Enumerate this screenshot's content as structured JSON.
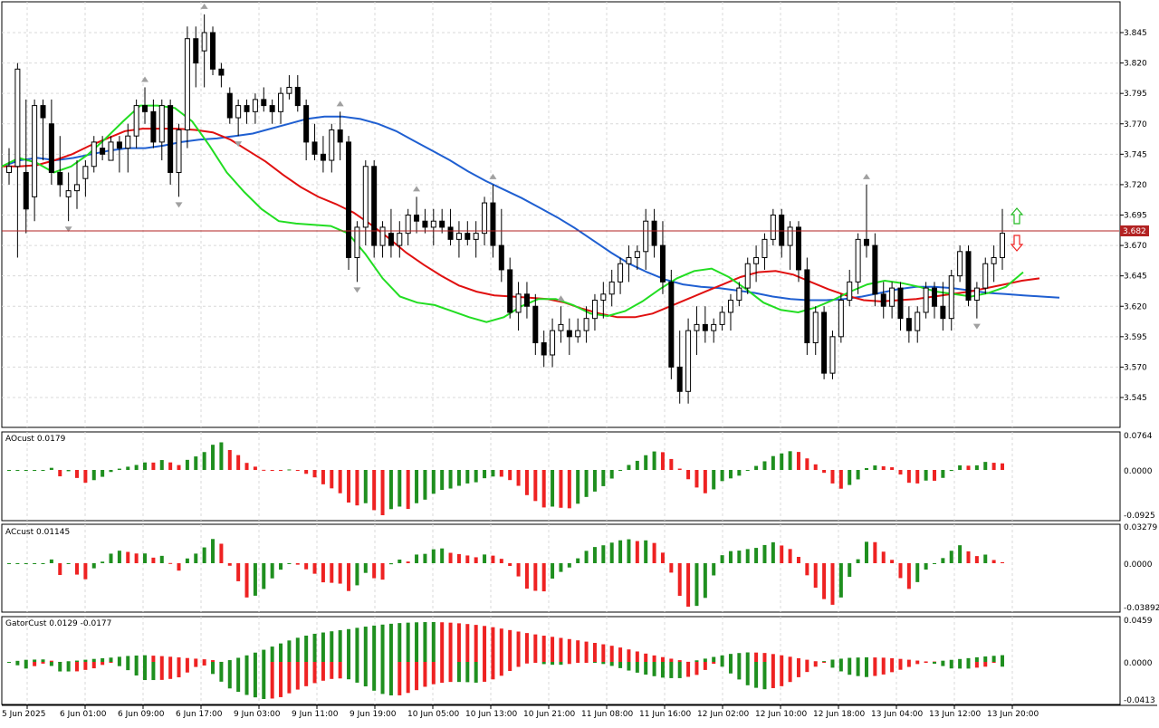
{
  "window": {
    "title": ""
  },
  "colors": {
    "background": "#ffffff",
    "grid": "#d9d9d9",
    "axis": "#000000",
    "bull_candle": "#ffffff",
    "bear_candle": "#000000",
    "jaw": "#1f5fd1",
    "teeth": "#e01010",
    "lips": "#22dd22",
    "up_bar": "#1f8f1f",
    "down_bar": "#ee2222",
    "price_line": "#b22222",
    "price_label_bg": "#b22222",
    "fractal": "#a0a0a0"
  },
  "price_axis": {
    "ticks": [
      "3.845",
      "3.820",
      "3.795",
      "3.770",
      "3.745",
      "3.720",
      "3.695",
      "3.670",
      "3.645",
      "3.620",
      "3.595",
      "3.570",
      "3.545"
    ],
    "current_price_label": "3.682"
  },
  "time_axis": {
    "labels": [
      "5 Jun 2025",
      "6 Jun 01:00",
      "6 Jun 09:00",
      "6 Jun 17:00",
      "9 Jun 03:00",
      "9 Jun 11:00",
      "9 Jun 19:00",
      "10 Jun 05:00",
      "10 Jun 13:00",
      "10 Jun 21:00",
      "11 Jun 08:00",
      "11 Jun 16:00",
      "12 Jun 02:00",
      "12 Jun 10:00",
      "12 Jun 18:00",
      "13 Jun 04:00",
      "13 Jun 12:00",
      "13 Jun 20:00"
    ]
  },
  "panels": {
    "ao": {
      "title": "AOcust 0.0179",
      "ticks": [
        "0.0764",
        "0.0000",
        "-0.0925"
      ]
    },
    "ac": {
      "title": "ACcust 0.01145",
      "ticks": [
        "0.03279",
        "0.0000",
        "-0.03892"
      ]
    },
    "gator": {
      "title": "GatorCust 0.0129 -0.0177",
      "ticks": [
        "0.0459",
        "0.0000",
        "-0.0413"
      ]
    }
  },
  "signals": {
    "buy_arrow": "arrow-up-icon",
    "sell_arrow": "arrow-down-icon"
  },
  "chart_data": {
    "type": "candlestick",
    "ylim": [
      3.53,
      3.86
    ],
    "candles": [
      [
        3.73,
        3.75,
        3.72,
        3.735
      ],
      [
        3.735,
        3.82,
        3.66,
        3.815
      ],
      [
        3.73,
        3.79,
        3.68,
        3.7
      ],
      [
        3.71,
        3.79,
        3.69,
        3.785
      ],
      [
        3.785,
        3.79,
        3.74,
        3.775
      ],
      [
        3.77,
        3.79,
        3.72,
        3.73
      ],
      [
        3.73,
        3.76,
        3.71,
        3.72
      ],
      [
        3.71,
        3.73,
        3.69,
        3.715
      ],
      [
        3.715,
        3.74,
        3.7,
        3.72
      ],
      [
        3.725,
        3.74,
        3.71,
        3.735
      ],
      [
        3.735,
        3.76,
        3.73,
        3.755
      ],
      [
        3.75,
        3.76,
        3.74,
        3.745
      ],
      [
        3.74,
        3.76,
        3.74,
        3.755
      ],
      [
        3.755,
        3.76,
        3.73,
        3.75
      ],
      [
        3.75,
        3.77,
        3.73,
        3.76
      ],
      [
        3.76,
        3.79,
        3.75,
        3.785
      ],
      [
        3.785,
        3.8,
        3.77,
        3.78
      ],
      [
        3.78,
        3.79,
        3.75,
        3.755
      ],
      [
        3.755,
        3.79,
        3.74,
        3.785
      ],
      [
        3.785,
        3.79,
        3.72,
        3.73
      ],
      [
        3.73,
        3.77,
        3.71,
        3.765
      ],
      [
        3.765,
        3.85,
        3.75,
        3.84
      ],
      [
        3.84,
        3.85,
        3.8,
        3.82
      ],
      [
        3.83,
        3.86,
        3.8,
        3.845
      ],
      [
        3.845,
        3.85,
        3.81,
        3.815
      ],
      [
        3.815,
        3.82,
        3.8,
        3.81
      ],
      [
        3.795,
        3.8,
        3.77,
        3.775
      ],
      [
        3.775,
        3.79,
        3.76,
        3.785
      ],
      [
        3.785,
        3.79,
        3.77,
        3.78
      ],
      [
        3.78,
        3.795,
        3.77,
        3.79
      ],
      [
        3.79,
        3.8,
        3.78,
        3.785
      ],
      [
        3.785,
        3.79,
        3.77,
        3.78
      ],
      [
        3.78,
        3.8,
        3.77,
        3.795
      ],
      [
        3.795,
        3.81,
        3.79,
        3.8
      ],
      [
        3.8,
        3.81,
        3.78,
        3.785
      ],
      [
        3.785,
        3.79,
        3.74,
        3.755
      ],
      [
        3.755,
        3.77,
        3.74,
        3.745
      ],
      [
        3.745,
        3.76,
        3.73,
        3.74
      ],
      [
        3.74,
        3.77,
        3.73,
        3.765
      ],
      [
        3.765,
        3.78,
        3.74,
        3.755
      ],
      [
        3.755,
        3.76,
        3.65,
        3.66
      ],
      [
        3.66,
        3.69,
        3.64,
        3.685
      ],
      [
        3.685,
        3.74,
        3.67,
        3.735
      ],
      [
        3.735,
        3.74,
        3.66,
        3.67
      ],
      [
        3.67,
        3.69,
        3.66,
        3.685
      ],
      [
        3.68,
        3.7,
        3.66,
        3.67
      ],
      [
        3.67,
        3.69,
        3.66,
        3.68
      ],
      [
        3.68,
        3.7,
        3.67,
        3.695
      ],
      [
        3.695,
        3.71,
        3.68,
        3.69
      ],
      [
        3.69,
        3.7,
        3.68,
        3.685
      ],
      [
        3.685,
        3.7,
        3.67,
        3.69
      ],
      [
        3.69,
        3.7,
        3.68,
        3.685
      ],
      [
        3.685,
        3.7,
        3.67,
        3.675
      ],
      [
        3.675,
        3.69,
        3.66,
        3.68
      ],
      [
        3.68,
        3.69,
        3.67,
        3.675
      ],
      [
        3.675,
        3.69,
        3.66,
        3.68
      ],
      [
        3.68,
        3.71,
        3.67,
        3.705
      ],
      [
        3.705,
        3.72,
        3.66,
        3.67
      ],
      [
        3.67,
        3.7,
        3.64,
        3.65
      ],
      [
        3.65,
        3.66,
        3.61,
        3.615
      ],
      [
        3.615,
        3.64,
        3.6,
        3.63
      ],
      [
        3.63,
        3.64,
        3.61,
        3.62
      ],
      [
        3.62,
        3.63,
        3.58,
        3.59
      ],
      [
        3.59,
        3.6,
        3.57,
        3.58
      ],
      [
        3.58,
        3.61,
        3.57,
        3.6
      ],
      [
        3.6,
        3.62,
        3.59,
        3.605
      ],
      [
        3.6,
        3.61,
        3.58,
        3.595
      ],
      [
        3.595,
        3.61,
        3.59,
        3.6
      ],
      [
        3.6,
        3.62,
        3.59,
        3.61
      ],
      [
        3.61,
        3.63,
        3.6,
        3.625
      ],
      [
        3.625,
        3.64,
        3.61,
        3.63
      ],
      [
        3.63,
        3.65,
        3.62,
        3.64
      ],
      [
        3.64,
        3.66,
        3.63,
        3.655
      ],
      [
        3.655,
        3.67,
        3.64,
        3.66
      ],
      [
        3.66,
        3.67,
        3.65,
        3.665
      ],
      [
        3.665,
        3.7,
        3.65,
        3.69
      ],
      [
        3.69,
        3.7,
        3.66,
        3.67
      ],
      [
        3.67,
        3.69,
        3.63,
        3.64
      ],
      [
        3.64,
        3.65,
        3.56,
        3.57
      ],
      [
        3.57,
        3.6,
        3.54,
        3.55
      ],
      [
        3.55,
        3.61,
        3.54,
        3.6
      ],
      [
        3.6,
        3.62,
        3.58,
        3.605
      ],
      [
        3.605,
        3.62,
        3.59,
        3.6
      ],
      [
        3.6,
        3.61,
        3.59,
        3.605
      ],
      [
        3.605,
        3.62,
        3.6,
        3.615
      ],
      [
        3.615,
        3.63,
        3.6,
        3.625
      ],
      [
        3.625,
        3.64,
        3.62,
        3.635
      ],
      [
        3.635,
        3.66,
        3.63,
        3.655
      ],
      [
        3.655,
        3.67,
        3.64,
        3.66
      ],
      [
        3.66,
        3.68,
        3.65,
        3.675
      ],
      [
        3.675,
        3.7,
        3.67,
        3.695
      ],
      [
        3.695,
        3.7,
        3.66,
        3.67
      ],
      [
        3.67,
        3.69,
        3.65,
        3.685
      ],
      [
        3.685,
        3.69,
        3.64,
        3.65
      ],
      [
        3.65,
        3.66,
        3.58,
        3.59
      ],
      [
        3.59,
        3.62,
        3.58,
        3.615
      ],
      [
        3.615,
        3.62,
        3.56,
        3.565
      ],
      [
        3.565,
        3.6,
        3.56,
        3.595
      ],
      [
        3.595,
        3.63,
        3.59,
        3.625
      ],
      [
        3.625,
        3.65,
        3.62,
        3.64
      ],
      [
        3.64,
        3.68,
        3.63,
        3.675
      ],
      [
        3.675,
        3.72,
        3.66,
        3.67
      ],
      [
        3.67,
        3.68,
        3.62,
        3.63
      ],
      [
        3.63,
        3.64,
        3.61,
        3.62
      ],
      [
        3.62,
        3.64,
        3.61,
        3.635
      ],
      [
        3.635,
        3.64,
        3.6,
        3.61
      ],
      [
        3.61,
        3.62,
        3.59,
        3.6
      ],
      [
        3.6,
        3.62,
        3.59,
        3.615
      ],
      [
        3.615,
        3.64,
        3.61,
        3.635
      ],
      [
        3.635,
        3.64,
        3.61,
        3.62
      ],
      [
        3.62,
        3.64,
        3.6,
        3.61
      ],
      [
        3.61,
        3.65,
        3.6,
        3.645
      ],
      [
        3.645,
        3.67,
        3.64,
        3.665
      ],
      [
        3.665,
        3.67,
        3.62,
        3.625
      ],
      [
        3.625,
        3.64,
        3.61,
        3.635
      ],
      [
        3.635,
        3.66,
        3.63,
        3.655
      ],
      [
        3.655,
        3.67,
        3.64,
        3.66
      ],
      [
        3.66,
        3.7,
        3.65,
        3.68
      ]
    ],
    "alligator": {
      "jaw": [
        3.735,
        3.74,
        3.742,
        3.74,
        3.742,
        3.745,
        3.748,
        3.75,
        3.75,
        3.752,
        3.755,
        3.757,
        3.758,
        3.76,
        3.762,
        3.766,
        3.77,
        3.774,
        3.776,
        3.776,
        3.774,
        3.77,
        3.764,
        3.756,
        3.748,
        3.74,
        3.731,
        3.723,
        3.716,
        3.709,
        3.701,
        3.693,
        3.684,
        3.674,
        3.664,
        3.655,
        3.648,
        3.642,
        3.638,
        3.636,
        3.635,
        3.633,
        3.631,
        3.628,
        3.626,
        3.625,
        3.625,
        3.626,
        3.628,
        3.631,
        3.634,
        3.636,
        3.636,
        3.635,
        3.633,
        3.631,
        3.63,
        3.629,
        3.628,
        3.627
      ],
      "teeth": [
        3.735,
        3.735,
        3.736,
        3.74,
        3.745,
        3.752,
        3.758,
        3.764,
        3.766,
        3.766,
        3.766,
        3.765,
        3.763,
        3.757,
        3.748,
        3.739,
        3.728,
        3.718,
        3.71,
        3.704,
        3.697,
        3.687,
        3.676,
        3.664,
        3.654,
        3.645,
        3.637,
        3.632,
        3.629,
        3.628,
        3.627,
        3.626,
        3.623,
        3.618,
        3.614,
        3.611,
        3.611,
        3.614,
        3.62,
        3.626,
        3.632,
        3.638,
        3.644,
        3.648,
        3.649,
        3.646,
        3.64,
        3.634,
        3.629,
        3.625,
        3.624,
        3.625,
        3.626,
        3.628,
        3.63,
        3.632,
        3.635,
        3.638,
        3.641,
        3.643
      ],
      "lips": [
        3.735,
        3.742,
        3.738,
        3.73,
        3.735,
        3.745,
        3.758,
        3.772,
        3.785,
        3.785,
        3.783,
        3.772,
        3.752,
        3.73,
        3.714,
        3.7,
        3.69,
        3.688,
        3.687,
        3.686,
        3.68,
        3.663,
        3.643,
        3.628,
        3.623,
        3.621,
        3.616,
        3.611,
        3.607,
        3.611,
        3.62,
        3.626,
        3.626,
        3.621,
        3.614,
        3.612,
        3.616,
        3.624,
        3.634,
        3.643,
        3.649,
        3.651,
        3.644,
        3.634,
        3.623,
        3.617,
        3.615,
        3.619,
        3.625,
        3.632,
        3.638,
        3.641,
        3.639,
        3.636,
        3.632,
        3.63,
        3.628,
        3.631,
        3.636,
        3.648
      ]
    }
  }
}
